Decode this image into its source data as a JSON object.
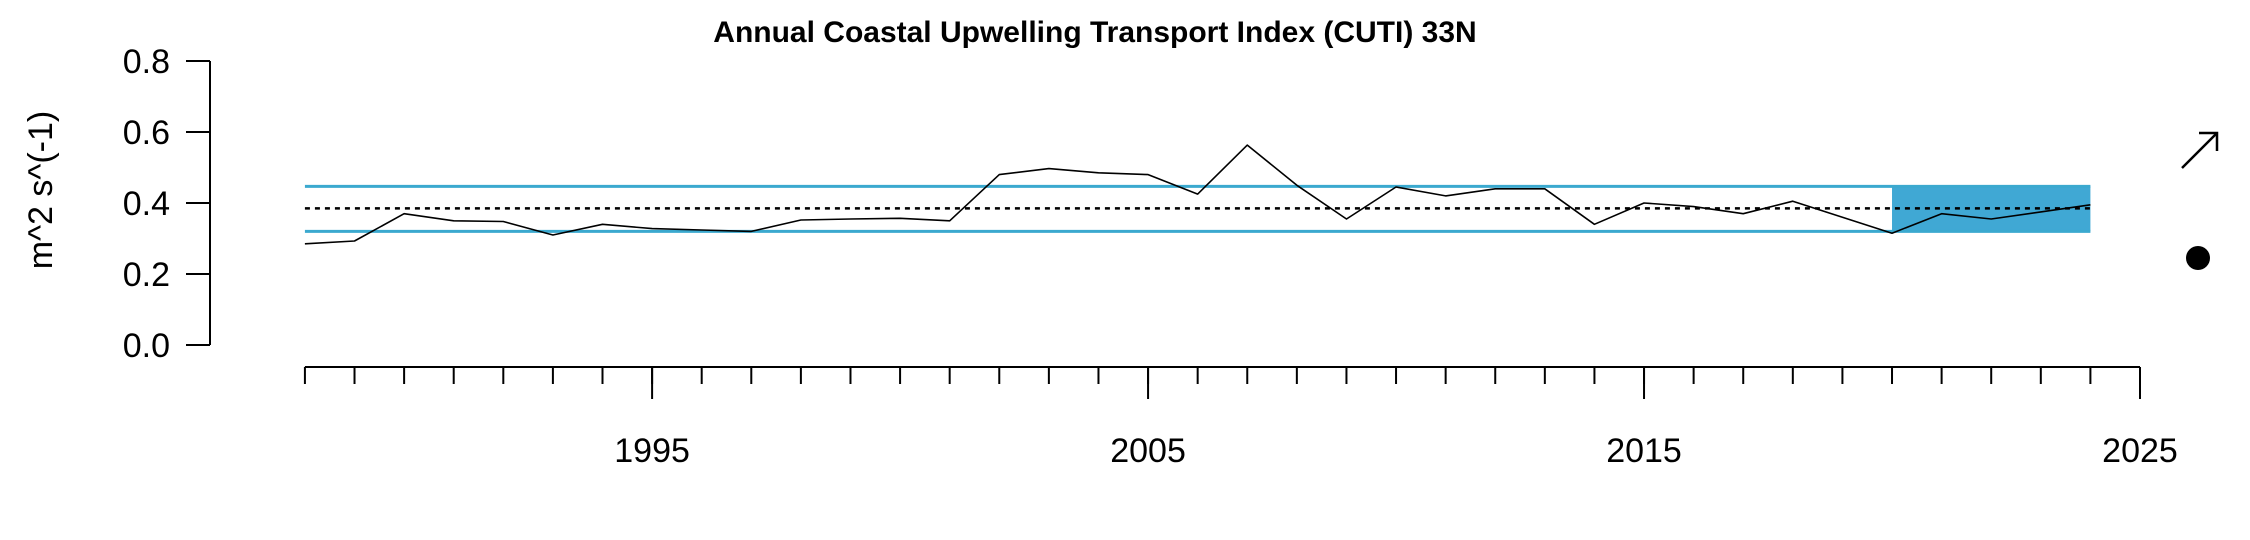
{
  "chart_data": {
    "type": "line",
    "title": "Annual Coastal Upwelling Transport Index (CUTI) 33N",
    "xlabel": "",
    "ylabel": "m^2 s^(-1)",
    "xlim": [
      1987.8,
      2025
    ],
    "ylim": [
      0,
      0.8
    ],
    "yticks": [
      0.0,
      0.2,
      0.4,
      0.6,
      0.8
    ],
    "ytick_labels": [
      "0.0",
      "0.2",
      "0.4",
      "0.6",
      "0.8"
    ],
    "xticks_labeled": [
      1995,
      2005,
      2015,
      2025
    ],
    "xtick_labels": [
      "1995",
      "2005",
      "2015",
      "2025"
    ],
    "xticks_minor_range": [
      1988,
      2025
    ],
    "grid": false,
    "series": [
      {
        "x": [
          1988,
          1989,
          1990,
          1991,
          1992,
          1993,
          1994,
          1995,
          1996,
          1997,
          1998,
          1999,
          2000,
          2001,
          2002,
          2003,
          2004,
          2005,
          2006,
          2007,
          2008,
          2009,
          2010,
          2011,
          2012,
          2013,
          2014,
          2015,
          2016,
          2017,
          2018,
          2019,
          2020,
          2021,
          2022,
          2023,
          2024
        ],
        "values": [
          0.285,
          0.293,
          0.37,
          0.35,
          0.348,
          0.31,
          0.34,
          0.328,
          0.324,
          0.32,
          0.352,
          0.355,
          0.357,
          0.35,
          0.48,
          0.497,
          0.485,
          0.48,
          0.425,
          0.563,
          0.45,
          0.355,
          0.445,
          0.42,
          0.44,
          0.44,
          0.34,
          0.4,
          0.39,
          0.37,
          0.405,
          0.36,
          0.315,
          0.37,
          0.355,
          0.375,
          0.395
        ]
      }
    ],
    "mean": 0.385,
    "upper_band": 0.447,
    "lower_band": 0.32,
    "recent_window": [
      2020,
      2024
    ],
    "trend_symbol": "up-arrow",
    "mean_symbol": "filled-circle",
    "colors": {
      "band_line": "#3BA9CF",
      "recent_fill": "#40A8D4",
      "series_line": "#000000",
      "mean_line": "#000000"
    }
  }
}
